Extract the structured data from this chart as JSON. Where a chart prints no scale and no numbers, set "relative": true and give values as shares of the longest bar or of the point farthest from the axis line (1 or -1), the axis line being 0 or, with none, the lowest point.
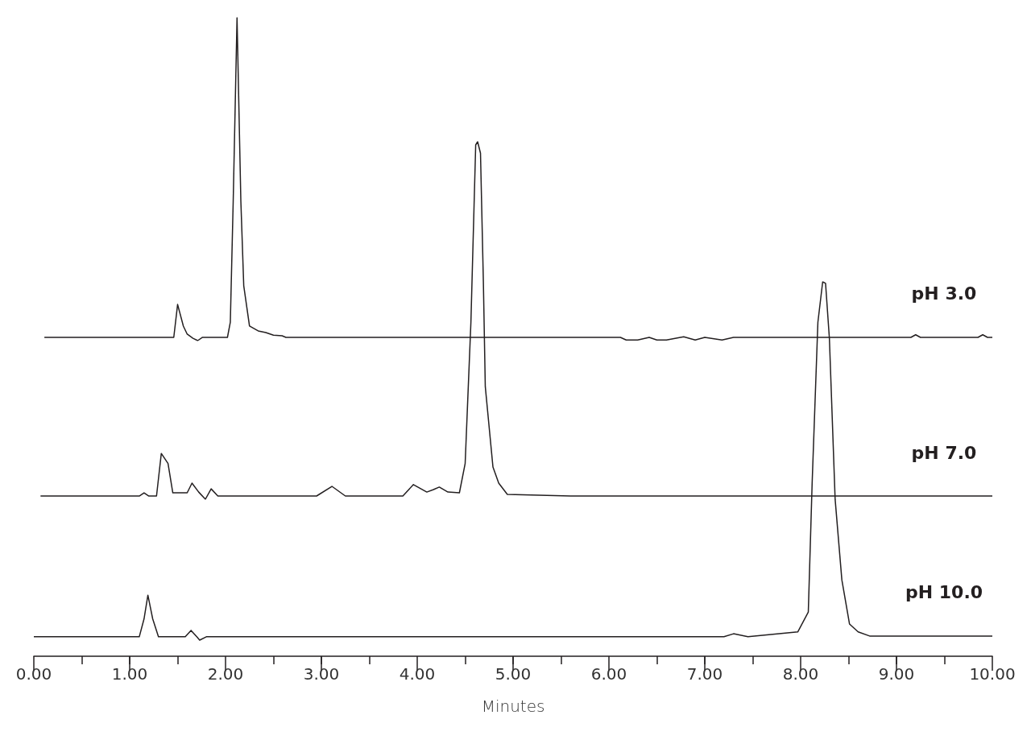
{
  "chart_data": [
    {
      "type": "line",
      "relative": true,
      "xlim": [
        0,
        10
      ],
      "tick_labels": false,
      "marker": "none",
      "line_style": "solid",
      "series": [
        {
          "name": "pH 3.0",
          "color": "#231f20",
          "x": [
            0.11,
            1.46,
            1.5,
            1.56,
            1.6,
            1.66,
            1.71,
            1.76,
            2.02,
            2.05,
            2.08,
            2.12,
            2.16,
            2.19,
            2.25,
            2.34,
            2.42,
            2.5,
            2.59,
            2.63,
            6.12,
            6.18,
            6.3,
            6.42,
            6.5,
            6.6,
            6.78,
            6.9,
            7.0,
            7.18,
            7.3,
            9.15,
            9.2,
            9.25,
            9.85,
            9.9,
            9.95,
            10.0
          ],
          "values": [
            0.01,
            0.01,
            0.112,
            0.045,
            0.02,
            0.007,
            0,
            0.01,
            0.01,
            0.057,
            0.431,
            1,
            0.431,
            0.17,
            0.045,
            0.03,
            0.025,
            0.017,
            0.015,
            0.01,
            0.01,
            0.002,
            0.002,
            0.01,
            0.002,
            0.002,
            0.012,
            0.002,
            0.01,
            0.002,
            0.01,
            0.01,
            0.018,
            0.01,
            0.01,
            0.018,
            0.01,
            0.01
          ]
        }
      ]
    },
    {
      "type": "line",
      "relative": true,
      "xlim": [
        0,
        10
      ],
      "tick_labels": false,
      "marker": "none",
      "line_style": "solid",
      "series": [
        {
          "name": "pH 7.0",
          "color": "#231f20",
          "x": [
            0.07,
            1.1,
            1.15,
            1.2,
            1.28,
            1.33,
            1.4,
            1.45,
            1.6,
            1.65,
            1.72,
            1.79,
            1.85,
            1.92,
            2.1,
            2.95,
            3.11,
            3.25,
            3.85,
            3.96,
            4.1,
            4.17,
            4.23,
            4.32,
            4.44,
            4.5,
            4.56,
            4.61,
            4.63,
            4.66,
            4.69,
            4.71,
            4.79,
            4.85,
            4.94,
            5.6,
            10.0
          ],
          "values": [
            0.009,
            0.009,
            0.018,
            0.009,
            0.009,
            0.128,
            0.1,
            0.018,
            0.018,
            0.045,
            0.02,
            0,
            0.029,
            0.009,
            0.009,
            0.009,
            0.036,
            0.009,
            0.009,
            0.041,
            0.02,
            0.027,
            0.034,
            0.02,
            0.018,
            0.1,
            0.495,
            0.991,
            1,
            0.968,
            0.608,
            0.315,
            0.09,
            0.045,
            0.0135,
            0.009,
            0.009
          ]
        }
      ]
    },
    {
      "type": "line",
      "relative": true,
      "xlim": [
        0,
        10
      ],
      "xticks": [
        {
          "value": 0,
          "label": "0.00"
        },
        {
          "value": 1,
          "label": "1.00"
        },
        {
          "value": 2,
          "label": "2.00"
        },
        {
          "value": 3,
          "label": "3.00"
        },
        {
          "value": 4,
          "label": "4.00"
        },
        {
          "value": 5,
          "label": "5.00"
        },
        {
          "value": 6,
          "label": "6.00"
        },
        {
          "value": 7,
          "label": "7.00"
        },
        {
          "value": 8,
          "label": "8.00"
        },
        {
          "value": 9,
          "label": "9.00"
        },
        {
          "value": 10,
          "label": "10.00"
        }
      ],
      "xlabel": "Minutes",
      "tick_labels": "x",
      "marker": "none",
      "line_style": "solid",
      "series": [
        {
          "name": "pH 10.0",
          "color": "#231f20",
          "x": [
            0.0,
            0.85,
            1.1,
            1.15,
            1.19,
            1.24,
            1.3,
            1.58,
            1.64,
            1.7,
            1.73,
            1.8,
            2.5,
            7.2,
            7.3,
            7.45,
            7.97,
            8.08,
            8.12,
            8.18,
            8.23,
            8.26,
            8.3,
            8.36,
            8.43,
            8.51,
            8.6,
            8.72,
            10.0
          ],
          "values": [
            0.052,
            0.052,
            0.052,
            0.1,
            0.163,
            0.1,
            0.052,
            0.052,
            0.069,
            0.052,
            0.043,
            0.052,
            0.052,
            0.052,
            0.06,
            0.052,
            0.065,
            0.118,
            0.462,
            0.892,
            1,
            0.996,
            0.849,
            0.419,
            0.204,
            0.086,
            0.065,
            0.054,
            0.054
          ]
        }
      ]
    }
  ]
}
